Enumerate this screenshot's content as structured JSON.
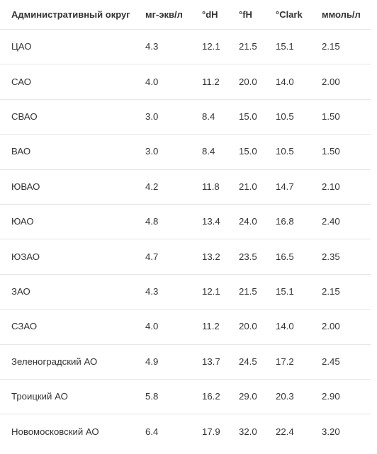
{
  "table": {
    "headers": [
      "Административный округ",
      "мг-экв/л",
      "°dH",
      "°fH",
      "°Clark",
      "ммоль/л"
    ],
    "rows": [
      [
        "ЦАО",
        "4.3",
        "12.1",
        "21.5",
        "15.1",
        "2.15"
      ],
      [
        "САО",
        "4.0",
        "11.2",
        "20.0",
        "14.0",
        "2.00"
      ],
      [
        "СВАО",
        "3.0",
        "8.4",
        "15.0",
        "10.5",
        "1.50"
      ],
      [
        "ВАО",
        "3.0",
        "8.4",
        "15.0",
        "10.5",
        "1.50"
      ],
      [
        "ЮВАО",
        "4.2",
        "11.8",
        "21.0",
        "14.7",
        "2.10"
      ],
      [
        "ЮАО",
        "4.8",
        "13.4",
        "24.0",
        "16.8",
        "2.40"
      ],
      [
        "ЮЗАО",
        "4.7",
        "13.2",
        "23.5",
        "16.5",
        "2.35"
      ],
      [
        "ЗАО",
        "4.3",
        "12.1",
        "21.5",
        "15.1",
        "2.15"
      ],
      [
        "СЗАО",
        "4.0",
        "11.2",
        "20.0",
        "14.0",
        "2.00"
      ],
      [
        "Зеленоградский АО",
        "4.9",
        "13.7",
        "24.5",
        "17.2",
        "2.45"
      ],
      [
        "Троицкий АО",
        "5.8",
        "16.2",
        "29.0",
        "20.3",
        "2.90"
      ],
      [
        "Новомосковский АО",
        "6.4",
        "17.9",
        "32.0",
        "22.4",
        "3.20"
      ]
    ]
  }
}
